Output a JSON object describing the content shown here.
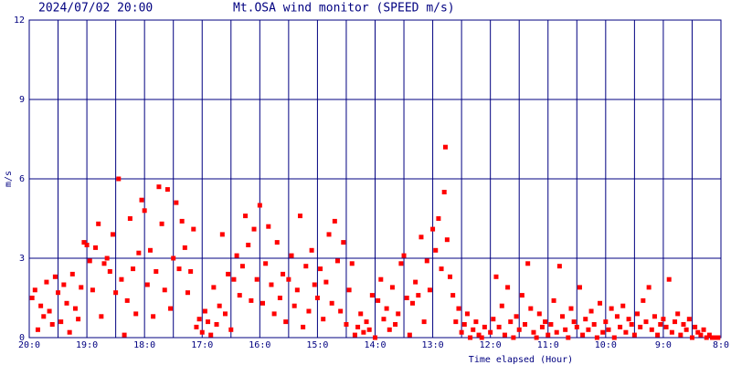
{
  "chart_data": {
    "type": "scatter",
    "title": "2024/07/02 20:00",
    "subtitle": "Mt.OSA wind monitor (SPEED m/s)",
    "ylabel": "m/s",
    "xlabel": "Time elapsed (Hour)",
    "color": "#ff0000",
    "grid": true,
    "xlim": [
      0,
      12
    ],
    "ylim": [
      0,
      12
    ],
    "yticks": [
      0,
      3,
      6,
      9,
      12
    ],
    "xticks": [
      {
        "value": 0,
        "label": "20:0"
      },
      {
        "value": 1,
        "label": "19:0"
      },
      {
        "value": 2,
        "label": "18:0"
      },
      {
        "value": 3,
        "label": "17:0"
      },
      {
        "value": 4,
        "label": "16:0"
      },
      {
        "value": 5,
        "label": "15:0"
      },
      {
        "value": 6,
        "label": "14:0"
      },
      {
        "value": 7,
        "label": "13:0"
      },
      {
        "value": 8,
        "label": "12:0"
      },
      {
        "value": 9,
        "label": "11:0"
      },
      {
        "value": 10,
        "label": "10:0"
      },
      {
        "value": 11,
        "label": "9:0"
      },
      {
        "value": 12,
        "label": "8:0"
      }
    ],
    "x": [
      0.05,
      0.1,
      0.15,
      0.2,
      0.25,
      0.3,
      0.35,
      0.4,
      0.45,
      0.5,
      0.55,
      0.6,
      0.65,
      0.7,
      0.75,
      0.8,
      0.85,
      0.9,
      0.95,
      1.0,
      1.05,
      1.1,
      1.15,
      1.2,
      1.25,
      1.3,
      1.35,
      1.4,
      1.45,
      1.5,
      1.55,
      1.6,
      1.65,
      1.7,
      1.75,
      1.8,
      1.85,
      1.9,
      1.95,
      2.0,
      2.05,
      2.1,
      2.15,
      2.2,
      2.25,
      2.3,
      2.35,
      2.4,
      2.45,
      2.5,
      2.55,
      2.6,
      2.65,
      2.7,
      2.75,
      2.8,
      2.85,
      2.9,
      2.95,
      3.0,
      3.05,
      3.1,
      3.15,
      3.2,
      3.25,
      3.3,
      3.35,
      3.4,
      3.45,
      3.5,
      3.55,
      3.6,
      3.65,
      3.7,
      3.75,
      3.8,
      3.85,
      3.9,
      3.95,
      4.0,
      4.05,
      4.1,
      4.15,
      4.2,
      4.25,
      4.3,
      4.35,
      4.4,
      4.45,
      4.5,
      4.55,
      4.6,
      4.65,
      4.7,
      4.75,
      4.8,
      4.85,
      4.9,
      4.95,
      5.0,
      5.05,
      5.1,
      5.15,
      5.2,
      5.25,
      5.3,
      5.35,
      5.4,
      5.45,
      5.5,
      5.55,
      5.6,
      5.65,
      5.7,
      5.75,
      5.8,
      5.85,
      5.9,
      5.95,
      6.0,
      6.05,
      6.1,
      6.15,
      6.2,
      6.25,
      6.3,
      6.35,
      6.4,
      6.45,
      6.5,
      6.55,
      6.6,
      6.65,
      6.7,
      6.75,
      6.8,
      6.85,
      6.9,
      6.95,
      7.0,
      7.05,
      7.1,
      7.15,
      7.2,
      7.22,
      7.25,
      7.3,
      7.35,
      7.4,
      7.45,
      7.5,
      7.55,
      7.6,
      7.65,
      7.7,
      7.75,
      7.8,
      7.85,
      7.9,
      8.0,
      8.05,
      8.1,
      8.15,
      8.2,
      8.25,
      8.3,
      8.35,
      8.4,
      8.45,
      8.5,
      8.55,
      8.6,
      8.65,
      8.7,
      8.75,
      8.8,
      8.85,
      8.9,
      8.95,
      9.0,
      9.05,
      9.1,
      9.15,
      9.2,
      9.25,
      9.3,
      9.35,
      9.4,
      9.45,
      9.5,
      9.55,
      9.6,
      9.65,
      9.7,
      9.75,
      9.8,
      9.85,
      9.9,
      9.95,
      10.0,
      10.05,
      10.1,
      10.15,
      10.2,
      10.25,
      10.3,
      10.35,
      10.4,
      10.45,
      10.5,
      10.55,
      10.6,
      10.65,
      10.7,
      10.75,
      10.8,
      10.85,
      10.9,
      10.95,
      11.0,
      11.05,
      11.1,
      11.15,
      11.2,
      11.25,
      11.3,
      11.35,
      11.4,
      11.45,
      11.5,
      11.55,
      11.6,
      11.65,
      11.7,
      11.75,
      11.8,
      11.85,
      11.9,
      11.95
    ],
    "values": [
      1.5,
      1.8,
      0.3,
      1.2,
      0.8,
      2.1,
      1.0,
      0.5,
      2.3,
      1.7,
      0.6,
      2.0,
      1.3,
      0.2,
      2.4,
      1.1,
      0.7,
      1.9,
      3.6,
      3.5,
      2.9,
      1.8,
      3.4,
      4.3,
      0.8,
      2.8,
      3.0,
      2.5,
      3.9,
      1.7,
      6.0,
      2.2,
      0.1,
      1.4,
      4.5,
      2.6,
      0.9,
      3.2,
      5.2,
      4.8,
      2.0,
      3.3,
      0.8,
      2.5,
      5.7,
      4.3,
      1.8,
      5.6,
      1.1,
      3.0,
      5.1,
      2.6,
      4.4,
      3.4,
      1.7,
      2.5,
      4.1,
      0.4,
      0.7,
      0.2,
      1.0,
      0.6,
      0.1,
      1.9,
      0.5,
      1.2,
      3.9,
      0.9,
      2.4,
      0.3,
      2.2,
      3.1,
      1.6,
      2.7,
      4.6,
      3.5,
      1.4,
      4.1,
      2.2,
      5.0,
      1.3,
      2.8,
      4.2,
      2.0,
      0.9,
      3.6,
      1.5,
      2.4,
      0.6,
      2.2,
      3.1,
      1.2,
      1.8,
      4.6,
      0.4,
      2.7,
      1.0,
      3.3,
      2.0,
      1.5,
      2.6,
      0.7,
      2.1,
      3.9,
      1.3,
      4.4,
      2.9,
      1.0,
      3.6,
      0.5,
      1.8,
      2.8,
      0.1,
      0.4,
      0.9,
      0.2,
      0.6,
      0.3,
      1.6,
      0.0,
      1.4,
      2.2,
      0.7,
      1.1,
      0.3,
      1.9,
      0.5,
      0.9,
      2.8,
      3.1,
      1.5,
      0.1,
      1.3,
      2.1,
      1.6,
      3.8,
      0.6,
      2.9,
      1.8,
      4.1,
      3.3,
      4.5,
      2.6,
      5.5,
      7.2,
      3.7,
      2.3,
      1.6,
      0.6,
      1.1,
      0.2,
      0.5,
      0.9,
      0.0,
      0.3,
      0.6,
      0.1,
      0.0,
      0.4,
      0.2,
      0.7,
      2.3,
      0.4,
      1.2,
      0.1,
      1.9,
      0.6,
      0.0,
      0.8,
      0.3,
      1.6,
      0.5,
      2.8,
      1.1,
      0.2,
      0.0,
      0.9,
      0.4,
      0.6,
      0.1,
      0.5,
      1.4,
      0.2,
      2.7,
      0.8,
      0.3,
      0.0,
      1.1,
      0.6,
      0.4,
      1.9,
      0.1,
      0.7,
      0.3,
      1.0,
      0.5,
      0.0,
      1.3,
      0.2,
      0.6,
      0.3,
      1.1,
      0.0,
      0.8,
      0.4,
      1.2,
      0.2,
      0.7,
      0.5,
      0.1,
      0.9,
      0.4,
      1.4,
      0.6,
      1.9,
      0.3,
      0.8,
      0.1,
      0.5,
      0.7,
      0.4,
      2.2,
      0.2,
      0.6,
      0.9,
      0.1,
      0.5,
      0.3,
      0.7,
      0.0,
      0.4,
      0.2,
      0.1,
      0.3,
      0.0,
      0.1,
      0.0,
      0.0,
      0.0
    ]
  }
}
